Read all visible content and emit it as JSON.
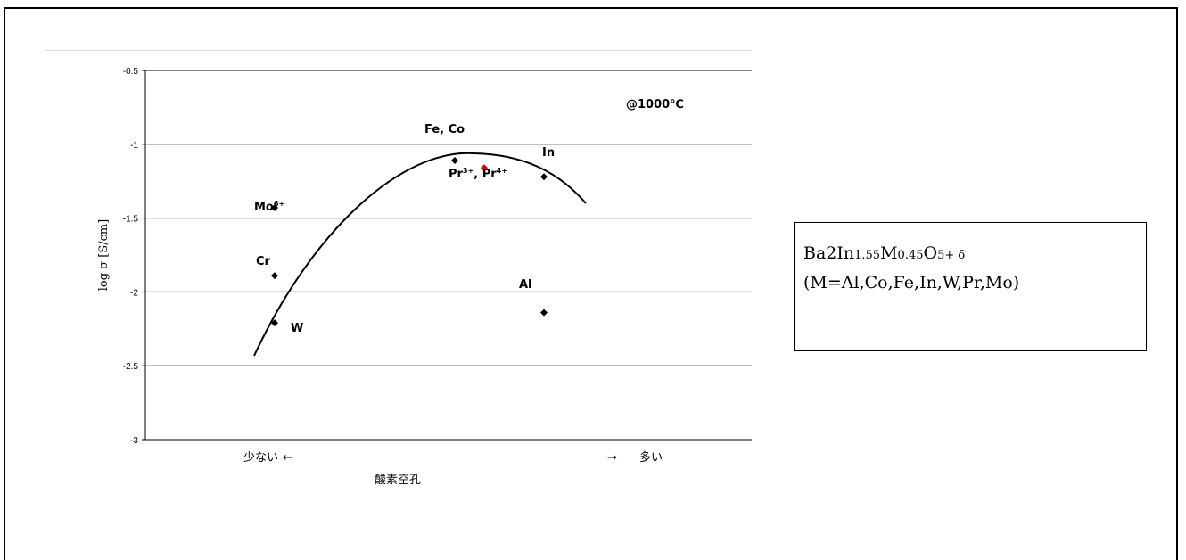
{
  "chart_data": {
    "type": "scatter",
    "ylabel": "log σ [S/cm]",
    "ylim": [
      -3,
      -0.5
    ],
    "yticks": [
      "-0.5",
      "-1",
      "-1.5",
      "-2",
      "-2.5",
      "-3"
    ],
    "grid": "horizontal",
    "condition": "@1000℃",
    "xaxis": {
      "title": "酸素空孔",
      "left_label": "少ない",
      "left_arrow": "←",
      "right_arrow": "→",
      "right_label": "多い"
    },
    "points": [
      {
        "label": "Mo6+",
        "y": -1.43,
        "color": "#000000"
      },
      {
        "label": "Cr",
        "y": -1.89,
        "color": "#000000"
      },
      {
        "label": "W",
        "y": -2.21,
        "color": "#000000"
      },
      {
        "label": "Fe, Co",
        "y": -1.11,
        "color": "#000000"
      },
      {
        "label": "Pr3+, Pr4+",
        "y": -1.16,
        "color": "#e00000"
      },
      {
        "label": "In",
        "y": -1.22,
        "color": "#000000"
      },
      {
        "label": "Al",
        "y": -2.14,
        "color": "#000000"
      }
    ],
    "point_labels": {
      "mo": "Mo",
      "mo_sup": "6+",
      "cr": "Cr",
      "w": "W",
      "feco": "Fe, Co",
      "pr1": "Pr",
      "pr1_sup": "3+",
      "pr_sep": ", ",
      "pr2": "Pr",
      "pr2_sup": "4+",
      "in": "In",
      "al": "Al"
    },
    "trend": "parabolic fit"
  },
  "formula_box": {
    "formula_main": "Ba2In",
    "formula_sub1": "1.55",
    "formula_m": "M",
    "formula_sub2": "0.45",
    "formula_o": "O",
    "formula_sub3": "5+ δ",
    "elements": "(M=Al,Co,Fe,In,W,Pr,Mo)"
  }
}
